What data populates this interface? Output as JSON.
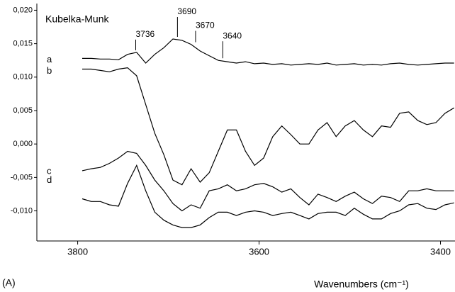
{
  "chart_data": {
    "type": "line",
    "y_label": "Kubelka-Munk",
    "x_label": "Wavenumbers (cm⁻¹)",
    "panel_label": "(A)",
    "xlim": [
      3845,
      3384
    ],
    "ylim": [
      -0.0145,
      0.021
    ],
    "xticks": [
      3800,
      3600,
      3400
    ],
    "yticks": [
      {
        "value": 0.02,
        "label": "0,020"
      },
      {
        "value": 0.015,
        "label": "0,015"
      },
      {
        "value": 0.01,
        "label": "0,010"
      },
      {
        "value": 0.005,
        "label": "0,005"
      },
      {
        "value": 0,
        "label": "0,000"
      },
      {
        "value": -0.005,
        "label": "-0,005"
      },
      {
        "value": -0.01,
        "label": "-0,010"
      }
    ],
    "grid": false,
    "peak_labels": [
      3736,
      3690,
      3670,
      3640
    ],
    "x": [
      3795,
      3785,
      3775,
      3765,
      3755,
      3745,
      3735,
      3725,
      3715,
      3705,
      3695,
      3685,
      3675,
      3665,
      3655,
      3645,
      3635,
      3625,
      3615,
      3605,
      3595,
      3585,
      3575,
      3565,
      3555,
      3545,
      3535,
      3525,
      3515,
      3505,
      3495,
      3485,
      3475,
      3465,
      3455,
      3445,
      3435,
      3425,
      3415,
      3405,
      3395,
      3385
    ],
    "series": [
      {
        "name": "a",
        "color": "#000000",
        "values": [
          0.0128,
          0.0128,
          0.0127,
          0.0127,
          0.0126,
          0.0134,
          0.0137,
          0.0121,
          0.0134,
          0.0144,
          0.0157,
          0.0155,
          0.0149,
          0.0139,
          0.0132,
          0.0125,
          0.0123,
          0.0121,
          0.0123,
          0.012,
          0.0121,
          0.0119,
          0.012,
          0.0118,
          0.0119,
          0.012,
          0.0119,
          0.0121,
          0.0118,
          0.0119,
          0.012,
          0.0118,
          0.0119,
          0.0118,
          0.012,
          0.0121,
          0.0119,
          0.0118,
          0.0119,
          0.012,
          0.0121,
          0.0121
        ]
      },
      {
        "name": "b",
        "color": "#000000",
        "values": [
          0.0112,
          0.0112,
          0.011,
          0.0108,
          0.0112,
          0.0114,
          0.0102,
          0.0059,
          0.0016,
          -0.0016,
          -0.0054,
          -0.0061,
          -0.0037,
          -0.0057,
          -0.0043,
          -0.0011,
          0.0021,
          0.0021,
          -0.0011,
          -0.0032,
          -0.0021,
          0.0011,
          0.0027,
          0.0014,
          0.0,
          0.0,
          0.0021,
          0.0032,
          0.0011,
          0.0027,
          0.0035,
          0.0021,
          0.0011,
          0.0027,
          0.0025,
          0.0046,
          0.0048,
          0.0035,
          0.0029,
          0.0032,
          0.0046,
          0.0054
        ]
      },
      {
        "name": "c",
        "color": "#000000",
        "values": [
          -0.004,
          -0.0037,
          -0.0035,
          -0.0029,
          -0.0021,
          -0.0011,
          -0.0014,
          -0.0032,
          -0.0054,
          -0.007,
          -0.0089,
          -0.01,
          -0.0091,
          -0.0096,
          -0.007,
          -0.0067,
          -0.0061,
          -0.007,
          -0.0067,
          -0.0061,
          -0.0059,
          -0.0064,
          -0.0072,
          -0.0067,
          -0.008,
          -0.0091,
          -0.0075,
          -0.008,
          -0.0086,
          -0.0078,
          -0.0072,
          -0.0082,
          -0.0089,
          -0.0078,
          -0.008,
          -0.0086,
          -0.007,
          -0.007,
          -0.0067,
          -0.007,
          -0.007,
          -0.007
        ]
      },
      {
        "name": "d",
        "color": "#000000",
        "values": [
          -0.0082,
          -0.0086,
          -0.0086,
          -0.0091,
          -0.0093,
          -0.0059,
          -0.0032,
          -0.007,
          -0.0102,
          -0.0114,
          -0.0121,
          -0.0125,
          -0.0125,
          -0.0121,
          -0.011,
          -0.0102,
          -0.0102,
          -0.0107,
          -0.0102,
          -0.01,
          -0.0102,
          -0.0107,
          -0.0104,
          -0.0102,
          -0.0107,
          -0.0112,
          -0.0104,
          -0.0102,
          -0.0102,
          -0.0107,
          -0.0096,
          -0.0105,
          -0.0112,
          -0.0112,
          -0.0104,
          -0.01,
          -0.0091,
          -0.0089,
          -0.0096,
          -0.0098,
          -0.0091,
          -0.0088
        ]
      }
    ]
  }
}
